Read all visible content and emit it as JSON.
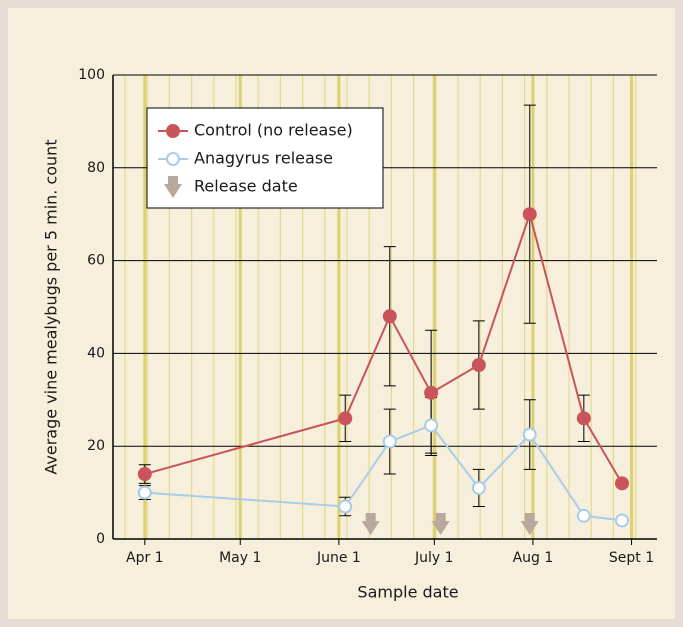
{
  "chart_data": {
    "type": "line",
    "xlabel": "Sample date",
    "ylabel": "Average vine mealybugs per 5 min. count",
    "xlim": [
      -10,
      161
    ],
    "ylim": [
      0,
      100
    ],
    "xticks": [
      {
        "value": 0,
        "label": "Apr 1"
      },
      {
        "value": 30,
        "label": "May 1"
      },
      {
        "value": 61,
        "label": "June 1"
      },
      {
        "value": 91,
        "label": "July 1"
      },
      {
        "value": 122,
        "label": "Aug 1"
      },
      {
        "value": 153,
        "label": "Sept 1"
      }
    ],
    "yticks": [
      0,
      20,
      40,
      60,
      80,
      100
    ],
    "grid": true,
    "legend": "upper left",
    "x": [
      0,
      63,
      77,
      90,
      105,
      121,
      138,
      150
    ],
    "series": [
      {
        "name": "Control (no release)",
        "color": "#c9545b",
        "marker_fill": "#c9545b",
        "values": [
          14,
          26,
          48,
          31.5,
          37.5,
          70,
          26,
          12
        ],
        "errors": [
          2,
          5,
          15,
          13.5,
          9.5,
          23.5,
          5,
          null
        ]
      },
      {
        "name": "Anagyrus release",
        "color": "#a9cce8",
        "marker_fill": "#ffffff",
        "values": [
          10,
          7,
          21,
          24.5,
          11,
          22.5,
          5,
          4
        ],
        "errors": [
          1.5,
          2,
          7,
          6,
          4,
          7.5,
          null,
          null
        ]
      }
    ],
    "release_marker": {
      "name": "Release date",
      "color": "#b8a89e",
      "x": [
        71,
        93,
        121
      ]
    }
  }
}
